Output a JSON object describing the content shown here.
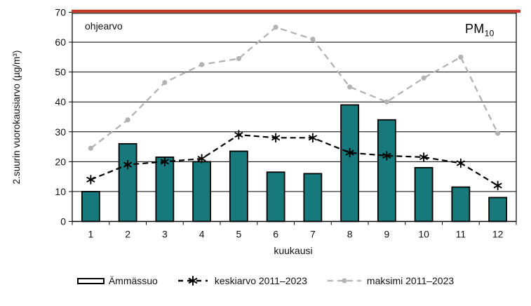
{
  "chart_data": {
    "type": "bar",
    "title_main": "PM",
    "title_sub": "10",
    "xlabel": "kuukausi",
    "ylabel": "2.suurin vuorokausiarvo (µg/m³)",
    "ylim": [
      0,
      70
    ],
    "yticks": [
      0,
      10,
      20,
      30,
      40,
      50,
      60,
      70
    ],
    "categories": [
      "1",
      "2",
      "3",
      "4",
      "5",
      "6",
      "7",
      "8",
      "9",
      "10",
      "11",
      "12"
    ],
    "series": [
      {
        "name": "Ämmässuo",
        "type": "bar",
        "color": "#17797b",
        "values": [
          10,
          26,
          21.5,
          20,
          23.5,
          16.5,
          16,
          39,
          34,
          18,
          11.5,
          8
        ]
      },
      {
        "name": "keskiarvo 2011–2023",
        "type": "line",
        "style": "dashed",
        "marker": "asterisk",
        "color": "#000000",
        "values": [
          14,
          19,
          20,
          21,
          29,
          28,
          28,
          23,
          22,
          21.5,
          19.5,
          12
        ]
      },
      {
        "name": "maksimi 2011–2023",
        "type": "line",
        "style": "dashed",
        "marker": "circle",
        "color": "#b3b3b3",
        "values": [
          24.5,
          34,
          46.5,
          52.5,
          54.5,
          65,
          61,
          45,
          40,
          48,
          55,
          29.5
        ]
      }
    ],
    "guideline": {
      "label": "ohjearvo",
      "value": 70,
      "color": "#c23a2c"
    },
    "grid": "horizontal",
    "legend_position": "bottom"
  }
}
